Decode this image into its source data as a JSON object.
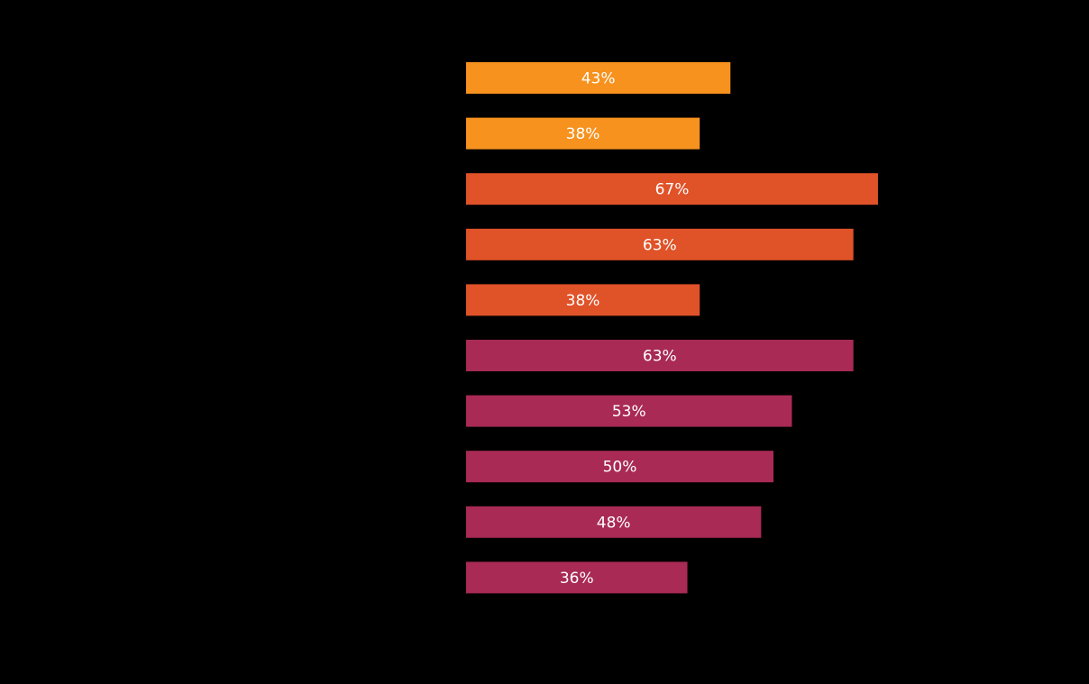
{
  "chart_data": {
    "type": "bar",
    "orientation": "horizontal",
    "title": "",
    "xlabel": "",
    "ylabel": "",
    "xlim": [
      0,
      100
    ],
    "grid": false,
    "legend": "none",
    "background": "#000000",
    "label_color": "#ffffff",
    "bars": [
      {
        "value": 43,
        "label": "43%",
        "color": "#f7921e"
      },
      {
        "value": 38,
        "label": "38%",
        "color": "#f7921e"
      },
      {
        "value": 67,
        "label": "67%",
        "color": "#e05228"
      },
      {
        "value": 63,
        "label": "63%",
        "color": "#e05228"
      },
      {
        "value": 38,
        "label": "38%",
        "color": "#e05228"
      },
      {
        "value": 63,
        "label": "63%",
        "color": "#a82a55"
      },
      {
        "value": 53,
        "label": "53%",
        "color": "#a82a55"
      },
      {
        "value": 50,
        "label": "50%",
        "color": "#a82a55"
      },
      {
        "value": 48,
        "label": "48%",
        "color": "#a82a55"
      },
      {
        "value": 36,
        "label": "36%",
        "color": "#a82a55"
      }
    ]
  }
}
